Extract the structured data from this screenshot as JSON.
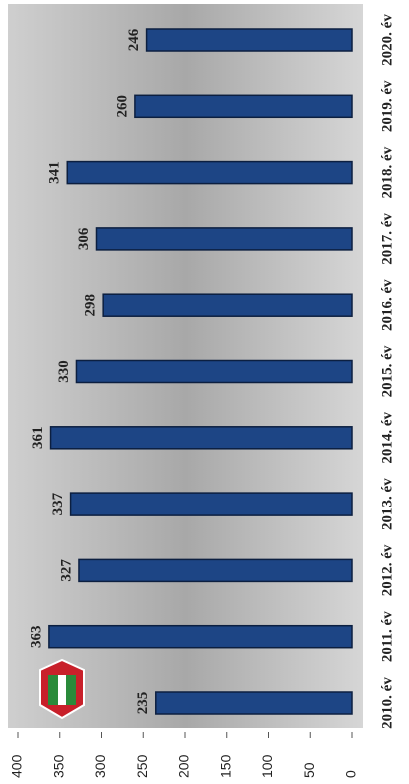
{
  "chart_data": {
    "type": "bar",
    "categories": [
      "2010. év",
      "2011. év",
      "2012. év",
      "2013. év",
      "2014. év",
      "2015. év",
      "2016. év",
      "2017. év",
      "2018. év",
      "2019. év",
      "2020. év"
    ],
    "values": [
      235,
      363,
      327,
      337,
      361,
      330,
      298,
      306,
      341,
      260,
      246
    ],
    "color": "#1d4585",
    "ylim": [
      0,
      400
    ],
    "yticks": [
      0,
      50,
      100,
      150,
      200,
      250,
      300,
      350,
      400
    ]
  }
}
